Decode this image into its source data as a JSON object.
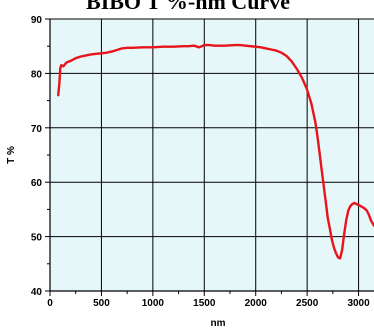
{
  "chart_data": {
    "type": "line",
    "title": "BIBO T %-nm Curve",
    "xlabel": "nm",
    "ylabel": "T %",
    "xlim": [
      0,
      3150
    ],
    "ylim": [
      40,
      90
    ],
    "x_ticks": [
      0,
      500,
      1000,
      1500,
      2000,
      2500,
      3000
    ],
    "y_ticks": [
      40,
      50,
      60,
      70,
      80,
      90
    ],
    "grid": true,
    "legend": "none",
    "colors": {
      "background": "#e6f7f9",
      "grid": "#000000",
      "line": "#e8141c"
    },
    "series": [
      {
        "x": [
          80,
          90,
          100,
          110,
          130,
          160,
          200,
          250,
          300,
          350,
          400,
          450,
          500,
          550,
          600,
          650,
          700,
          750,
          800,
          900,
          1000,
          1100,
          1200,
          1300,
          1350,
          1400,
          1450,
          1500,
          1550,
          1600,
          1700,
          1800,
          1850,
          1900,
          2000,
          2050,
          2100,
          2150,
          2200,
          2250,
          2300,
          2350,
          2400,
          2450,
          2500,
          2540,
          2580,
          2600,
          2620,
          2640,
          2660,
          2680,
          2700,
          2720,
          2740,
          2760,
          2780,
          2800,
          2820,
          2840,
          2860,
          2880,
          2900,
          2920,
          2940,
          2960,
          2980,
          3000,
          3020,
          3050,
          3080,
          3100,
          3120,
          3150
        ],
        "y": [
          76,
          78,
          81,
          81.5,
          81.3,
          82,
          82.3,
          82.8,
          83.1,
          83.3,
          83.5,
          83.6,
          83.7,
          83.8,
          84.0,
          84.3,
          84.6,
          84.7,
          84.7,
          84.8,
          84.8,
          84.9,
          84.9,
          85.0,
          85.0,
          85.1,
          84.8,
          85.2,
          85.2,
          85.1,
          85.1,
          85.2,
          85.2,
          85.1,
          84.9,
          84.8,
          84.6,
          84.4,
          84.2,
          83.8,
          83.2,
          82.2,
          80.8,
          79.2,
          77.0,
          74.5,
          71.0,
          68.5,
          65.5,
          62.5,
          59.5,
          56.5,
          53.5,
          51.5,
          49.5,
          48.0,
          47.0,
          46.2,
          46.0,
          47.5,
          50.5,
          53.0,
          54.8,
          55.6,
          56.0,
          56.2,
          56.0,
          55.8,
          55.6,
          55.3,
          54.8,
          54.0,
          53.0,
          52.0
        ]
      }
    ]
  }
}
